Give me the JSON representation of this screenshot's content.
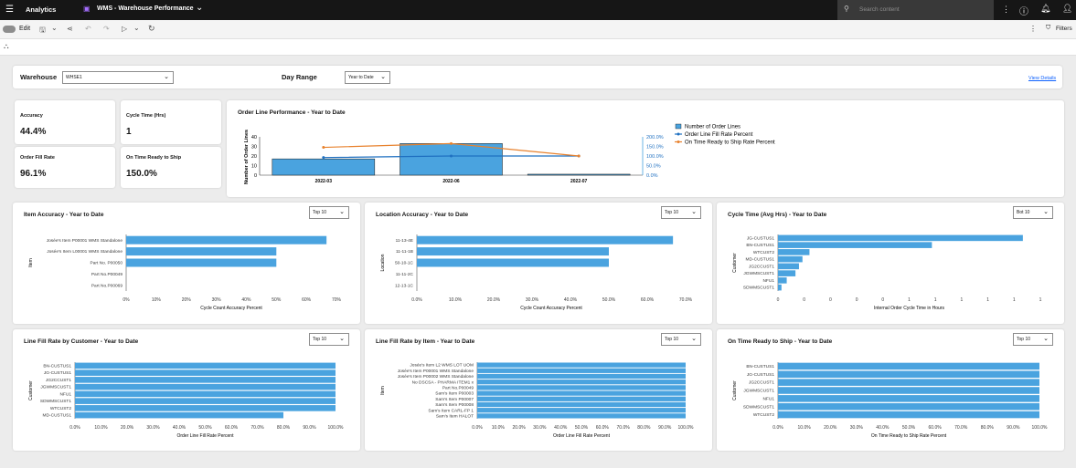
{
  "topbar": {
    "app": "Analytics",
    "report_title": "WMS - Warehouse Performance",
    "search_placeholder": "Search content"
  },
  "toolbar": {
    "edit_label": "Edit",
    "filters_label": "Filters"
  },
  "filters": {
    "warehouse_label": "Warehouse",
    "warehouse_value": "WHSE1",
    "dayrange_label": "Day Range",
    "dayrange_value": "Year to Date",
    "view_details": "View Details"
  },
  "kpis": [
    {
      "label": "Accuracy",
      "value": "44.4%"
    },
    {
      "label": "Cycle Time (Hrs)",
      "value": "1"
    },
    {
      "label": "Order Fill Rate",
      "value": "96.1%"
    },
    {
      "label": "On Time Ready to Ship",
      "value": "150.0%"
    }
  ],
  "combo": {
    "title": "Order Line Performance - Year to Date",
    "legend": [
      "Number of Order Lines",
      "Order Line Fill Rate Percent",
      "On Time Ready to Ship Rate Percent"
    ],
    "colors": {
      "bar": "#4aa3df",
      "fill": "#1f70c1",
      "ontime": "#e8822e"
    }
  },
  "charts": [
    {
      "title": "Item Accuracy - Year to Date",
      "dropdown": "Top 10"
    },
    {
      "title": "Location Accuracy - Year to Date",
      "dropdown": "Top 10"
    },
    {
      "title": "Cycle Time (Avg Hrs) - Year to Date",
      "dropdown": "Bot 10"
    },
    {
      "title": "Line Fill Rate by Customer - Year to Date",
      "dropdown": "Top 10"
    },
    {
      "title": "Line Fill Rate by Item - Year to Date",
      "dropdown": "Top 10"
    },
    {
      "title": "On Time Ready to Ship - Year to Date",
      "dropdown": "Top 10"
    }
  ],
  "chart_data": [
    {
      "type": "bar",
      "title": "Order Line Performance - Year to Date",
      "categories": [
        "2022-03",
        "2022-06",
        "2022-07"
      ],
      "series": [
        {
          "name": "Number of Order Lines",
          "values": [
            17,
            33,
            1
          ],
          "axis": "left"
        },
        {
          "name": "Order Line Fill Rate Percent",
          "values": [
            92,
            100,
            100
          ],
          "axis": "right",
          "render": "line"
        },
        {
          "name": "On Time Ready to Ship Rate Percent",
          "values": [
            145,
            165,
            100
          ],
          "axis": "right",
          "render": "line"
        }
      ],
      "ylabel": "Number of Order Lines",
      "ylim": [
        0,
        40
      ],
      "yticks": [
        "0",
        "10",
        "20",
        "30",
        "40"
      ],
      "y2lim": [
        0,
        200
      ],
      "y2ticks": [
        "0.0%",
        "50.0%",
        "100.0%",
        "150.0%",
        "200.0%"
      ]
    },
    {
      "type": "bar",
      "orientation": "horizontal",
      "title": "Item Accuracy - Year to Date",
      "categories": [
        "Josée's Item P00001 WMS Standalone",
        "Josée's Item L00001 WMS Standalone",
        "Part No. P00050",
        "Part No.P00049",
        "Part No.P00069"
      ],
      "values": [
        66.7,
        50,
        50,
        0,
        0
      ],
      "xmax": 70,
      "xticks": [
        "0%",
        "10%",
        "20%",
        "30%",
        "40%",
        "50%",
        "60%",
        "70%"
      ],
      "xlabel": "Cycle Count Accuracy Percent",
      "ylabel": "Item"
    },
    {
      "type": "bar",
      "orientation": "horizontal",
      "title": "Location Accuracy - Year to Date",
      "categories": [
        "11-13-4E",
        "11-11-1B",
        "50-10-1C",
        "11-11-2C",
        "12-13-1C"
      ],
      "values": [
        66.7,
        50,
        50,
        0,
        0
      ],
      "xmax": 70,
      "xticks": [
        "0.0%",
        "10.0%",
        "20.0%",
        "30.0%",
        "40.0%",
        "50.0%",
        "60.0%",
        "70.0%"
      ],
      "xlabel": "Cycle Count Accuracy Percent",
      "ylabel": "Location"
    },
    {
      "type": "bar",
      "orientation": "horizontal",
      "title": "Cycle Time (Avg Hrs) - Year to Date",
      "categories": [
        "JG-CUSTUS1",
        "BN-CUSTUS1",
        "WTCUST2",
        "MD-CUSTUS1",
        "JG2CCUST1",
        "JGWMSCUST1",
        "NFU1",
        "SDWMSCUST1"
      ],
      "values": [
        1.4,
        0.88,
        0.18,
        0.14,
        0.12,
        0.1,
        0.05,
        0.02
      ],
      "xmax": 1.5,
      "xticks": [
        "0",
        "0",
        "0",
        "0",
        "0",
        "1",
        "1",
        "1",
        "1",
        "1",
        "1"
      ],
      "xlabel": "Internal Order Cycle Time in Hours",
      "ylabel": "Customer"
    },
    {
      "type": "bar",
      "orientation": "horizontal",
      "title": "Line Fill Rate by Customer - Year to Date",
      "categories": [
        "BN-CUSTUS1",
        "JG-CUSTUS1",
        "JG2CCUST1",
        "JGWMSCUST1",
        "NFU1",
        "SDWMSCUST1",
        "WTCUST2",
        "MD-CUSTUS1"
      ],
      "values": [
        100,
        100,
        100,
        100,
        100,
        100,
        100,
        80
      ],
      "xmax": 100,
      "xticks": [
        "0.0%",
        "10.0%",
        "20.0%",
        "30.0%",
        "40.0%",
        "50.0%",
        "60.0%",
        "70.0%",
        "80.0%",
        "90.0%",
        "100.0%"
      ],
      "xlabel": "Order Line Fill Rate Percent",
      "ylabel": "Customer"
    },
    {
      "type": "bar",
      "orientation": "horizontal",
      "title": "Line Fill Rate by Item - Year to Date",
      "categories": [
        "Josée's Item L2 WMS LOT UOM",
        "Josée's Item P00001 WMS Standalone",
        "Josée's Item P00002 WMS Standalone",
        "No DSCSA - PHARMA ITEM1 x",
        "Part No.P00049",
        "Sam's Item P00003",
        "Sam's Item P00007",
        "Sam's Item P00008",
        "Sam's Item CARL-FP 1",
        "Sam's Item HALOT"
      ],
      "values": [
        100,
        100,
        100,
        100,
        100,
        100,
        100,
        100,
        100,
        100
      ],
      "xmax": 100,
      "xticks": [
        "0.0%",
        "10.0%",
        "20.0%",
        "30.0%",
        "40.0%",
        "50.0%",
        "60.0%",
        "70.0%",
        "80.0%",
        "90.0%",
        "100.0%"
      ],
      "xlabel": "Order Line Fill Rate Percent",
      "ylabel": "Item"
    },
    {
      "type": "bar",
      "orientation": "horizontal",
      "title": "On Time Ready to Ship - Year to Date",
      "categories": [
        "BN-CUSTUS1",
        "JG-CUSTUS1",
        "JG2CCUST1",
        "JGWMSCUST1",
        "NFU1",
        "SDWMSCUST1",
        "WTCUST2"
      ],
      "values": [
        100,
        100,
        100,
        100,
        100,
        100,
        100
      ],
      "xmax": 100,
      "xticks": [
        "0.0%",
        "10.0%",
        "20.0%",
        "30.0%",
        "40.0%",
        "50.0%",
        "60.0%",
        "70.0%",
        "80.0%",
        "90.0%",
        "100.0%"
      ],
      "xlabel": "On Time Ready to Ship Rate Percent",
      "ylabel": "Customer"
    }
  ]
}
